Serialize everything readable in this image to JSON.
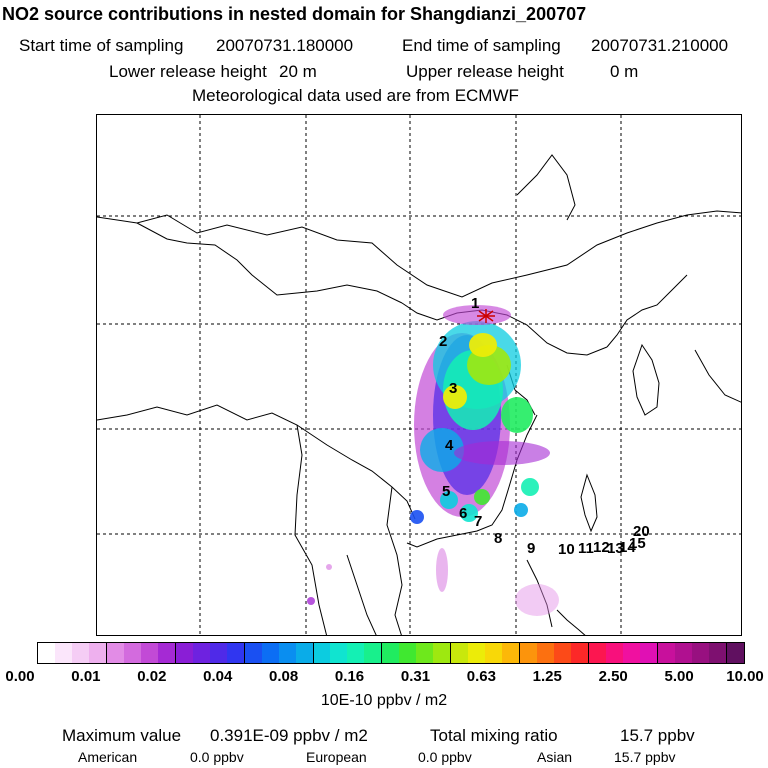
{
  "header": {
    "title": "NO2 source contributions in nested domain for Shangdianzi_200707",
    "start_label": "Start time of sampling",
    "start_value": "20070731.180000",
    "end_label": "End time of sampling",
    "end_value": "20070731.210000",
    "lower_label": "Lower release height",
    "lower_value": "20 m",
    "upper_label": "Upper release height",
    "upper_value": "0 m",
    "met_text": "Meteorological data used are from ECMWF"
  },
  "map": {
    "site_labels": [
      "1",
      "2",
      "3",
      "4",
      "5",
      "6",
      "7",
      "8",
      "9",
      "10",
      "11",
      "12",
      "13",
      "14",
      "15",
      "20"
    ],
    "colors": {
      "coastline": "#000000",
      "grid": "#000000",
      "receptor_star": "#cc0000"
    }
  },
  "colorbar": {
    "colors": [
      "#ffffff",
      "#fbe6fb",
      "#f5cdf5",
      "#eeb0ee",
      "#e28ce6",
      "#d36bde",
      "#c24ad6",
      "#a52ad4",
      "#8a1ed6",
      "#6e22e0",
      "#4f2ae8",
      "#3036f0",
      "#1a50f2",
      "#0c6ef4",
      "#0a8ef0",
      "#0aace8",
      "#0ccce0",
      "#10e4d0",
      "#14f0b4",
      "#18f08c",
      "#20ec60",
      "#40e830",
      "#6ee81c",
      "#9ee810",
      "#c8e80c",
      "#ecec08",
      "#f8d808",
      "#fcb808",
      "#fc940c",
      "#fc7010",
      "#fc4a18",
      "#fc2828",
      "#fc1650",
      "#f8107c",
      "#f010a0",
      "#e010b4",
      "#c8109c",
      "#b01090",
      "#981080",
      "#7e1070",
      "#601060"
    ],
    "tick_labels": [
      "0.00",
      "0.01",
      "0.02",
      "0.04",
      "0.08",
      "0.16",
      "0.31",
      "0.63",
      "1.25",
      "2.50",
      "5.00",
      "10.00"
    ],
    "unit_label": "10E-10 ppbv / m2"
  },
  "stats": {
    "max_label": "Maximum value",
    "max_value": "0.391E-09 ppbv / m2",
    "total_label": "Total mixing ratio",
    "total_value": "15.7 ppbv",
    "american_label": "American",
    "american_value": "0.0 ppbv",
    "european_label": "European",
    "european_value": "0.0 ppbv",
    "asian_label": "Asian",
    "asian_value": "15.7 ppbv"
  }
}
